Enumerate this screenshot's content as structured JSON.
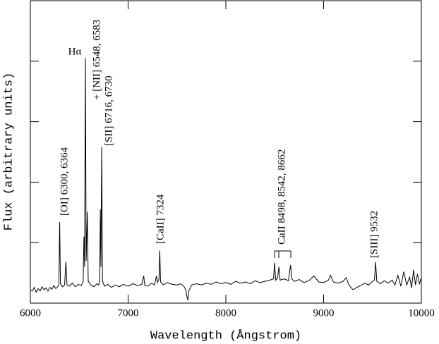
{
  "chart_data": {
    "type": "line",
    "xlabel": "Wavelength (Ångstrom)",
    "ylabel": "Flux (arbitrary units)",
    "xlim": [
      6000,
      10000
    ],
    "xticks": [
      6000,
      7000,
      8000,
      9000,
      10000
    ],
    "ylim": [
      0,
      5
    ],
    "yticks": [
      1,
      2,
      3,
      4
    ],
    "annotations": [
      "Hα",
      "+ [NII] 6548, 6583",
      "[SII] 6716, 6730",
      "[OI] 6300, 6364",
      "[CaII] 7324",
      "CaII 8498, 8542, 8662",
      "[SIII] 9532"
    ],
    "x": [
      6000,
      6020,
      6040,
      6060,
      6080,
      6100,
      6120,
      6140,
      6160,
      6180,
      6200,
      6220,
      6240,
      6260,
      6280,
      6292,
      6300,
      6308,
      6330,
      6350,
      6364,
      6375,
      6400,
      6430,
      6460,
      6490,
      6520,
      6540,
      6548,
      6555,
      6563,
      6571,
      6583,
      6592,
      6620,
      6650,
      6680,
      6700,
      6710,
      6716,
      6722,
      6730,
      6738,
      6760,
      6790,
      6830,
      6870,
      6910,
      6950,
      7000,
      7050,
      7100,
      7140,
      7160,
      7170,
      7200,
      7240,
      7270,
      7290,
      7300,
      7316,
      7324,
      7332,
      7360,
      7400,
      7450,
      7500,
      7540,
      7570,
      7590,
      7600,
      7610,
      7620,
      7650,
      7700,
      7750,
      7800,
      7850,
      7900,
      7950,
      8000,
      8050,
      8100,
      8150,
      8200,
      8250,
      8300,
      8350,
      8400,
      8450,
      8488,
      8498,
      8510,
      8530,
      8542,
      8555,
      8600,
      8640,
      8662,
      8675,
      8700,
      8750,
      8800,
      8850,
      8900,
      8950,
      9000,
      9050,
      9070,
      9100,
      9150,
      9200,
      9230,
      9260,
      9300,
      9340,
      9380,
      9420,
      9460,
      9500,
      9520,
      9532,
      9544,
      9580,
      9620,
      9660,
      9700,
      9730,
      9760,
      9790,
      9820,
      9850,
      9880,
      9900,
      9920,
      9940,
      9960,
      9980,
      10000
    ],
    "series": [
      {
        "color": "#000000",
        "values": [
          0.22,
          0.2,
          0.26,
          0.18,
          0.24,
          0.2,
          0.27,
          0.22,
          0.25,
          0.2,
          0.26,
          0.23,
          0.29,
          0.24,
          0.27,
          0.3,
          1.34,
          0.32,
          0.27,
          0.3,
          0.68,
          0.3,
          0.28,
          0.33,
          0.27,
          0.31,
          0.29,
          0.35,
          1.1,
          0.6,
          4.05,
          0.7,
          1.51,
          0.36,
          0.3,
          0.27,
          0.32,
          0.3,
          0.4,
          1.55,
          0.6,
          2.58,
          0.36,
          0.28,
          0.31,
          0.26,
          0.3,
          0.27,
          0.31,
          0.28,
          0.32,
          0.29,
          0.31,
          0.45,
          0.3,
          0.28,
          0.33,
          0.3,
          0.45,
          0.34,
          0.4,
          0.87,
          0.35,
          0.3,
          0.34,
          0.31,
          0.3,
          0.32,
          0.28,
          0.22,
          0.12,
          0.05,
          0.2,
          0.3,
          0.32,
          0.3,
          0.33,
          0.31,
          0.35,
          0.32,
          0.34,
          0.31,
          0.36,
          0.33,
          0.35,
          0.32,
          0.37,
          0.34,
          0.36,
          0.38,
          0.4,
          0.67,
          0.38,
          0.42,
          0.6,
          0.38,
          0.4,
          0.37,
          0.63,
          0.4,
          0.36,
          0.39,
          0.34,
          0.37,
          0.45,
          0.35,
          0.34,
          0.38,
          0.46,
          0.35,
          0.33,
          0.36,
          0.42,
          0.3,
          0.22,
          0.26,
          0.29,
          0.33,
          0.3,
          0.36,
          0.38,
          0.68,
          0.36,
          0.32,
          0.37,
          0.33,
          0.38,
          0.3,
          0.46,
          0.28,
          0.52,
          0.3,
          0.43,
          0.25,
          0.55,
          0.3,
          0.48,
          0.32,
          0.42
        ]
      }
    ]
  }
}
